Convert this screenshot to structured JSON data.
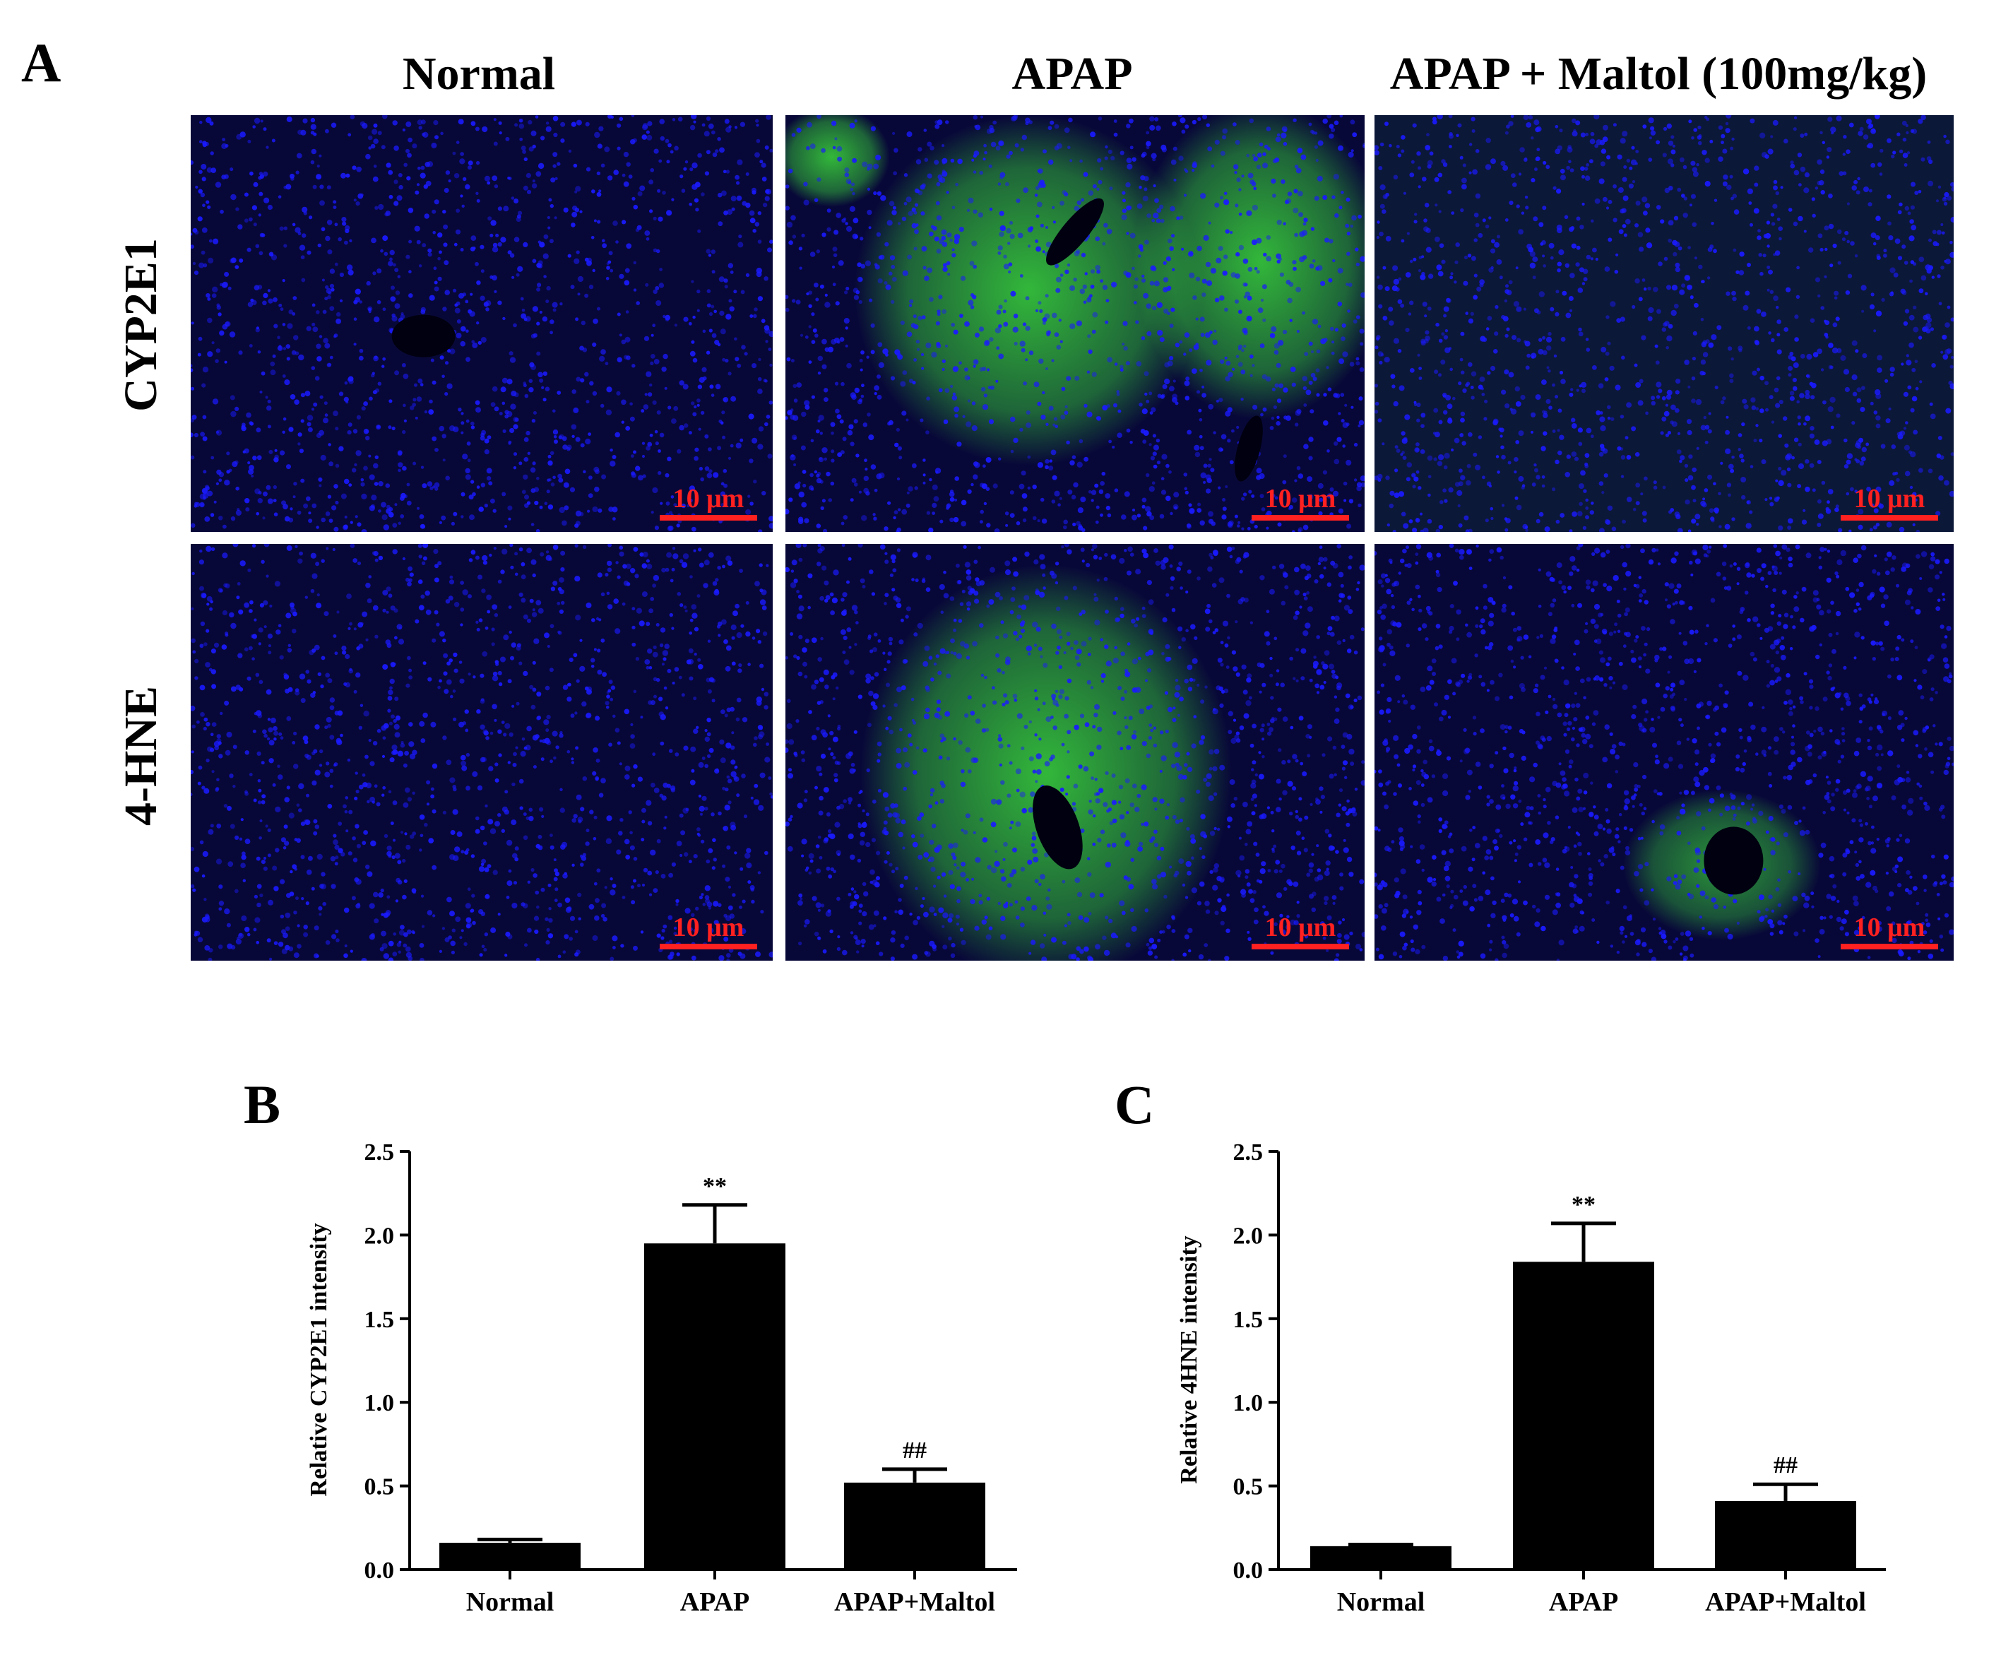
{
  "panels": {
    "a_letter": "A",
    "b_letter": "B",
    "c_letter": "C"
  },
  "micrograph_grid": {
    "columns": [
      "Normal",
      "APAP",
      "APAP + Maltol (100mg/kg)"
    ],
    "rows": [
      "CYP2E1",
      "4-HNE"
    ],
    "scale_bar_label": "10 μm",
    "colors": {
      "nuclei_dapi": "#1a1aff",
      "marker_stain": "#3ad63a",
      "background": "#080838",
      "scale_bar": "#ff2020"
    }
  },
  "chart_data": [
    {
      "type": "bar",
      "panel": "B",
      "categories": [
        "Normal",
        "APAP",
        "APAP+Maltol"
      ],
      "values": [
        0.16,
        1.95,
        0.52
      ],
      "errors": [
        0.02,
        0.23,
        0.08
      ],
      "significance": [
        "",
        "**",
        "##"
      ],
      "ylabel": "Relative CYP2E1 intensity",
      "ylim": [
        0.0,
        2.5
      ],
      "yticks": [
        "0.0",
        "0.5",
        "1.0",
        "1.5",
        "2.0",
        "2.5"
      ],
      "bar_color": "#000000"
    },
    {
      "type": "bar",
      "panel": "C",
      "categories": [
        "Normal",
        "APAP",
        "APAP+Maltol"
      ],
      "values": [
        0.14,
        1.84,
        0.41
      ],
      "errors": [
        0.01,
        0.23,
        0.1
      ],
      "significance": [
        "",
        "**",
        "##"
      ],
      "ylabel": "Relative 4HNE intensity",
      "ylim": [
        0.0,
        2.5
      ],
      "yticks": [
        "0.0",
        "0.5",
        "1.0",
        "1.5",
        "2.0",
        "2.5"
      ],
      "bar_color": "#000000"
    }
  ]
}
